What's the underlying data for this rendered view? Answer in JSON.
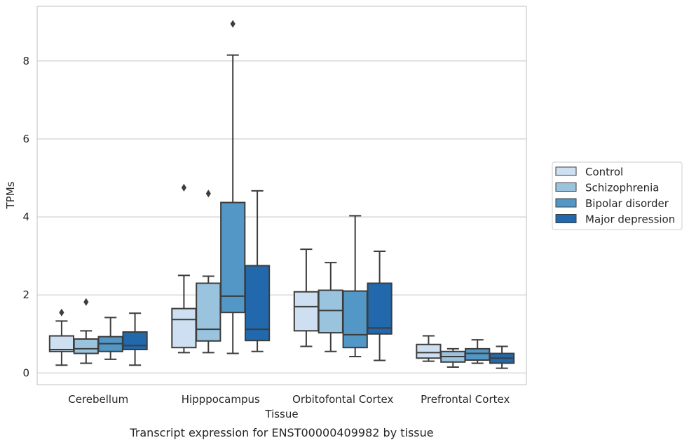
{
  "chart_data": {
    "type": "box",
    "title": "",
    "caption": "Transcript expression for ENST00000409982 by tissue",
    "xlabel": "Tissue",
    "ylabel": "TPMs",
    "ylim": [
      -0.3,
      9.4
    ],
    "yticks": [
      0,
      2,
      4,
      6,
      8
    ],
    "grid": true,
    "legend_position": "right",
    "categories": [
      "Cerebellum",
      "Hipppocampus",
      "Orbitofontal Cortex",
      "Prefrontal Cortex"
    ],
    "series": [
      {
        "name": "Control",
        "color": "#cddff0",
        "boxes": [
          {
            "whislo": 0.2,
            "q1": 0.55,
            "median": 0.6,
            "q3": 0.95,
            "whishi": 1.33,
            "fliers": [
              1.55
            ]
          },
          {
            "whislo": 0.52,
            "q1": 0.65,
            "median": 1.37,
            "q3": 1.65,
            "whishi": 2.5,
            "fliers": [
              4.75
            ]
          },
          {
            "whislo": 0.68,
            "q1": 1.08,
            "median": 1.7,
            "q3": 2.08,
            "whishi": 3.17,
            "fliers": []
          },
          {
            "whislo": 0.3,
            "q1": 0.38,
            "median": 0.52,
            "q3": 0.73,
            "whishi": 0.95,
            "fliers": []
          }
        ]
      },
      {
        "name": "Schizophrenia",
        "color": "#9ac3de",
        "boxes": [
          {
            "whislo": 0.25,
            "q1": 0.5,
            "median": 0.62,
            "q3": 0.87,
            "whishi": 1.08,
            "fliers": [
              1.82
            ]
          },
          {
            "whislo": 0.52,
            "q1": 0.82,
            "median": 1.12,
            "q3": 2.3,
            "whishi": 2.48,
            "fliers": [
              4.6
            ]
          },
          {
            "whislo": 0.55,
            "q1": 1.03,
            "median": 1.6,
            "q3": 2.12,
            "whishi": 2.83,
            "fliers": []
          },
          {
            "whislo": 0.15,
            "q1": 0.28,
            "median": 0.42,
            "q3": 0.55,
            "whishi": 0.62,
            "fliers": []
          }
        ]
      },
      {
        "name": "Bipolar disorder",
        "color": "#5297c6",
        "boxes": [
          {
            "whislo": 0.35,
            "q1": 0.55,
            "median": 0.75,
            "q3": 0.93,
            "whishi": 1.42,
            "fliers": []
          },
          {
            "whislo": 0.5,
            "q1": 1.55,
            "median": 1.97,
            "q3": 4.37,
            "whishi": 8.15,
            "fliers": [
              8.95
            ]
          },
          {
            "whislo": 0.42,
            "q1": 0.65,
            "median": 0.98,
            "q3": 2.1,
            "whishi": 4.03,
            "fliers": []
          },
          {
            "whislo": 0.25,
            "q1": 0.33,
            "median": 0.5,
            "q3": 0.62,
            "whishi": 0.85,
            "fliers": []
          }
        ]
      },
      {
        "name": "Major depression",
        "color": "#2268ac",
        "boxes": [
          {
            "whislo": 0.2,
            "q1": 0.6,
            "median": 0.7,
            "q3": 1.05,
            "whishi": 1.53,
            "fliers": []
          },
          {
            "whislo": 0.55,
            "q1": 0.83,
            "median": 1.12,
            "q3": 2.75,
            "whishi": 4.67,
            "fliers": []
          },
          {
            "whislo": 0.32,
            "q1": 1.0,
            "median": 1.15,
            "q3": 2.3,
            "whishi": 3.12,
            "fliers": []
          },
          {
            "whislo": 0.12,
            "q1": 0.25,
            "median": 0.38,
            "q3": 0.5,
            "whishi": 0.68,
            "fliers": []
          }
        ]
      }
    ]
  }
}
